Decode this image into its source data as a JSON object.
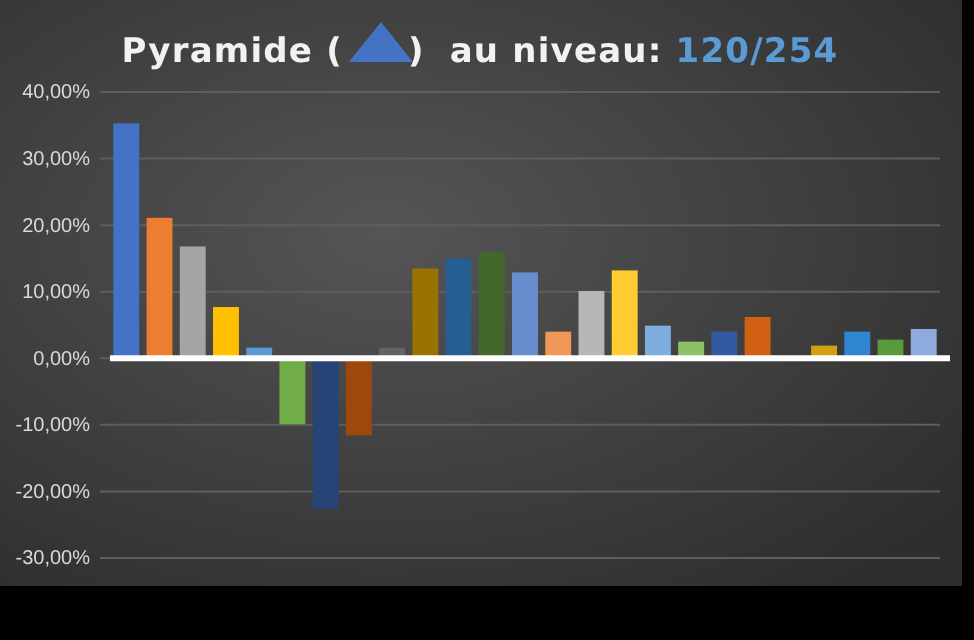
{
  "chart_data": {
    "type": "bar",
    "title": "Pyramide ( ) au niveau: 120/254",
    "categories": [
      null,
      null,
      null,
      null,
      null,
      null,
      null,
      null,
      null,
      null,
      null,
      null,
      null,
      null,
      null,
      null,
      null,
      null,
      null,
      null,
      null,
      null,
      null,
      null,
      null
    ],
    "values": [
      35.3,
      21.1,
      16.8,
      7.7,
      1.6,
      -9.9,
      -22.6,
      -11.6,
      1.6,
      13.5,
      15.0,
      15.9,
      12.9,
      4.0,
      10.1,
      13.2,
      4.9,
      2.5,
      4.0,
      6.2,
      null,
      1.9,
      4.0,
      2.8,
      4.4
    ],
    "colors": [
      "#4472c4",
      "#ed7d31",
      "#a5a5a5",
      "#ffc000",
      "#5b9bd5",
      "#70ad47",
      "#264478",
      "#9e480e",
      "#636363",
      "#997300",
      "#255e91",
      "#43682b",
      "#698ed0",
      "#f1975a",
      "#b7b7b7",
      "#ffcd33",
      "#7cafdd",
      "#8cc168",
      "#335aa1",
      "#d26012",
      "#808080",
      "#d4a012",
      "#2e86d0",
      "#5a9a3a",
      "#8faadc"
    ],
    "ylim": [
      -30,
      40
    ],
    "yticks": [
      {
        "value": -30,
        "label": "-30,00%"
      },
      {
        "value": -20,
        "label": "-20,00%"
      },
      {
        "value": -10,
        "label": "-10,00%"
      },
      {
        "value": 0,
        "label": "0,00%"
      },
      {
        "value": 10,
        "label": "10,00%"
      },
      {
        "value": 20,
        "label": "20,00%"
      },
      {
        "value": 30,
        "label": "30,00%"
      },
      {
        "value": 40,
        "label": "40,00%"
      }
    ],
    "grid": "y",
    "tick_labels": "y"
  }
}
